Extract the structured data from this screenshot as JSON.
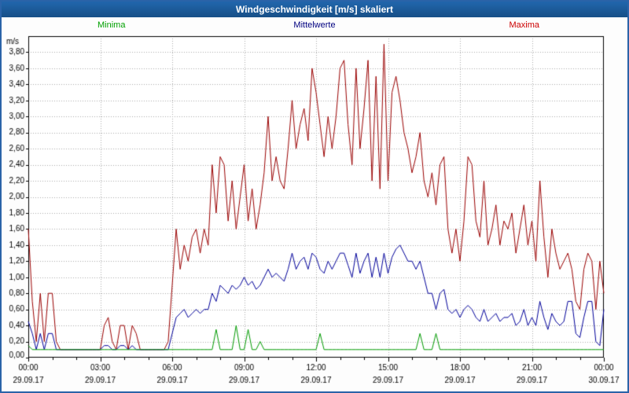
{
  "window": {
    "title": "Windgeschwindigkeit [m/s] skaliert"
  },
  "legend": {
    "minima": "Minima",
    "mittelwerte": "Mittelwerte",
    "maxima": "Maxima"
  },
  "legend_colors": {
    "minima": "#00a000",
    "mittelwerte": "#000080",
    "maxima": "#cc0000"
  },
  "chart_data": {
    "type": "line",
    "title": "Windgeschwindigkeit [m/s] skaliert",
    "y_unit": "m/s",
    "ylim": [
      0,
      4.0
    ],
    "y_tick_step": 0.2,
    "y_tick_labels": [
      "0,00",
      "0,20",
      "0,40",
      "0,60",
      "0,80",
      "1,00",
      "1,20",
      "1,40",
      "1,60",
      "1,80",
      "2,00",
      "2,20",
      "2,40",
      "2,60",
      "2,80",
      "3,00",
      "3,20",
      "3,40",
      "3,60",
      "3,80"
    ],
    "x_minutes_step": 10,
    "x_ticks": [
      {
        "time": "00:00",
        "date": "29.09.17",
        "index": 0
      },
      {
        "time": "03:00",
        "date": "29.09.17",
        "index": 18
      },
      {
        "time": "06:00",
        "date": "29.09.17",
        "index": 36
      },
      {
        "time": "09:00",
        "date": "29.09.17",
        "index": 54
      },
      {
        "time": "12:00",
        "date": "29.09.17",
        "index": 72
      },
      {
        "time": "15:00",
        "date": "29.09.17",
        "index": 90
      },
      {
        "time": "18:00",
        "date": "29.09.17",
        "index": 108
      },
      {
        "time": "21:00",
        "date": "29.09.17",
        "index": 126
      },
      {
        "time": "00:00",
        "date": "30.09.17",
        "index": 144
      }
    ],
    "grid": "dotted",
    "legend_position": "top",
    "series": [
      {
        "name": "Maxima",
        "color": "#990000",
        "values": [
          1.6,
          0.7,
          0.2,
          0.8,
          0.2,
          0.8,
          0.8,
          0.2,
          0.1,
          0.1,
          0.1,
          0.1,
          0.1,
          0.1,
          0.1,
          0.1,
          0.1,
          0.1,
          0.1,
          0.4,
          0.5,
          0.2,
          0.1,
          0.4,
          0.4,
          0.1,
          0.4,
          0.3,
          0.1,
          0.1,
          0.1,
          0.1,
          0.1,
          0.1,
          0.1,
          0.2,
          0.9,
          1.6,
          1.1,
          1.4,
          1.2,
          1.5,
          1.6,
          1.3,
          1.6,
          1.4,
          2.4,
          1.8,
          2.5,
          2.4,
          1.7,
          2.2,
          1.6,
          2.0,
          2.4,
          1.7,
          2.1,
          1.6,
          1.9,
          2.3,
          3.0,
          2.2,
          2.5,
          2.2,
          2.1,
          2.6,
          3.2,
          2.6,
          2.9,
          3.1,
          2.7,
          3.6,
          3.3,
          2.9,
          2.5,
          3.0,
          2.6,
          3.0,
          3.6,
          3.7,
          2.9,
          2.4,
          3.6,
          2.6,
          3.1,
          3.7,
          2.2,
          3.5,
          2.1,
          3.9,
          2.2,
          3.3,
          3.5,
          3.2,
          2.8,
          2.6,
          2.3,
          2.5,
          2.8,
          2.2,
          2.0,
          2.3,
          1.9,
          2.4,
          2.5,
          1.6,
          1.3,
          1.6,
          1.2,
          1.7,
          2.5,
          2.4,
          1.7,
          1.5,
          2.2,
          1.4,
          1.6,
          1.9,
          1.4,
          1.7,
          1.6,
          1.8,
          1.3,
          1.6,
          1.9,
          1.4,
          1.7,
          1.2,
          2.2,
          1.5,
          1.0,
          1.6,
          1.3,
          1.1,
          1.2,
          1.3,
          1.1,
          0.7,
          0.6,
          1.1,
          1.3,
          1.2,
          0.6,
          1.2,
          0.8
        ]
      },
      {
        "name": "Mittelwerte",
        "color": "#000099",
        "values": [
          0.45,
          0.3,
          0.1,
          0.3,
          0.1,
          0.3,
          0.3,
          0.1,
          0.1,
          0.1,
          0.1,
          0.1,
          0.1,
          0.1,
          0.1,
          0.1,
          0.1,
          0.1,
          0.1,
          0.15,
          0.15,
          0.1,
          0.1,
          0.15,
          0.15,
          0.1,
          0.15,
          0.1,
          0.1,
          0.1,
          0.1,
          0.1,
          0.1,
          0.1,
          0.1,
          0.1,
          0.3,
          0.5,
          0.55,
          0.6,
          0.5,
          0.55,
          0.6,
          0.55,
          0.6,
          0.6,
          0.8,
          0.7,
          0.9,
          0.85,
          0.8,
          0.9,
          0.85,
          0.9,
          1.0,
          0.9,
          0.95,
          0.85,
          0.9,
          1.0,
          1.1,
          1.0,
          1.05,
          1.0,
          0.95,
          1.1,
          1.3,
          1.1,
          1.2,
          1.25,
          1.1,
          1.3,
          1.25,
          1.1,
          1.05,
          1.2,
          1.1,
          1.2,
          1.3,
          1.3,
          1.15,
          1.0,
          1.3,
          1.05,
          1.2,
          1.3,
          1.0,
          1.25,
          1.0,
          1.3,
          1.05,
          1.25,
          1.35,
          1.4,
          1.3,
          1.2,
          1.2,
          1.1,
          1.2,
          1.0,
          0.8,
          0.8,
          0.6,
          0.8,
          0.85,
          0.6,
          0.55,
          0.6,
          0.5,
          0.6,
          0.65,
          0.6,
          0.5,
          0.45,
          0.6,
          0.45,
          0.5,
          0.55,
          0.45,
          0.5,
          0.5,
          0.55,
          0.4,
          0.45,
          0.6,
          0.4,
          0.5,
          0.4,
          0.7,
          0.5,
          0.35,
          0.55,
          0.45,
          0.4,
          0.45,
          0.7,
          0.7,
          0.3,
          0.25,
          0.5,
          0.7,
          0.7,
          0.2,
          0.15,
          0.6
        ]
      },
      {
        "name": "Minima",
        "color": "#009900",
        "values": [
          0.15,
          0.1,
          0.1,
          0.1,
          0.1,
          0.1,
          0.1,
          0.1,
          0.1,
          0.1,
          0.1,
          0.1,
          0.1,
          0.1,
          0.1,
          0.1,
          0.1,
          0.1,
          0.1,
          0.1,
          0.1,
          0.1,
          0.1,
          0.1,
          0.1,
          0.1,
          0.1,
          0.1,
          0.1,
          0.1,
          0.1,
          0.1,
          0.1,
          0.1,
          0.1,
          0.1,
          0.1,
          0.1,
          0.1,
          0.1,
          0.1,
          0.1,
          0.1,
          0.1,
          0.1,
          0.1,
          0.1,
          0.35,
          0.1,
          0.1,
          0.1,
          0.1,
          0.4,
          0.1,
          0.1,
          0.35,
          0.1,
          0.1,
          0.2,
          0.1,
          0.1,
          0.1,
          0.1,
          0.1,
          0.1,
          0.1,
          0.1,
          0.1,
          0.1,
          0.1,
          0.1,
          0.1,
          0.1,
          0.3,
          0.1,
          0.1,
          0.1,
          0.1,
          0.1,
          0.1,
          0.1,
          0.1,
          0.1,
          0.1,
          0.1,
          0.1,
          0.1,
          0.1,
          0.1,
          0.1,
          0.1,
          0.1,
          0.1,
          0.1,
          0.1,
          0.1,
          0.1,
          0.1,
          0.3,
          0.1,
          0.1,
          0.1,
          0.3,
          0.1,
          0.1,
          0.1,
          0.1,
          0.1,
          0.1,
          0.1,
          0.1,
          0.1,
          0.1,
          0.1,
          0.1,
          0.1,
          0.1,
          0.1,
          0.1,
          0.1,
          0.1,
          0.1,
          0.1,
          0.1,
          0.1,
          0.1,
          0.1,
          0.1,
          0.1,
          0.1,
          0.1,
          0.1,
          0.1,
          0.1,
          0.1,
          0.1,
          0.1,
          0.1,
          0.1,
          0.1,
          0.1,
          0.1,
          0.1,
          0.1,
          0.1
        ]
      }
    ]
  }
}
